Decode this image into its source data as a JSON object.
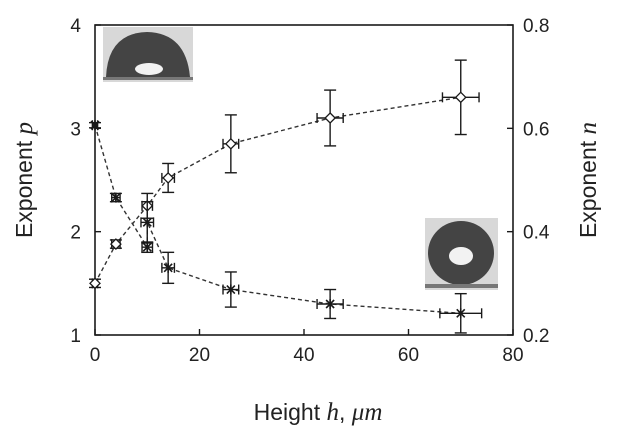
{
  "chart_data": {
    "type": "scatter",
    "xlabel": "Height",
    "xlabel_symbol": "h",
    "xlabel_unit": "μm",
    "ylabel_left": "Exponent",
    "ylabel_left_symbol": "p",
    "ylabel_right": "Exponent",
    "ylabel_right_symbol": "n",
    "xlim": [
      0,
      80
    ],
    "ylim_left": [
      1,
      4
    ],
    "ylim_right": [
      0.2,
      0.8
    ],
    "x_ticks": [
      "0",
      "20",
      "40",
      "60",
      "80"
    ],
    "y_left_ticks": [
      "1",
      "2",
      "3",
      "4"
    ],
    "y_right_ticks": [
      "0.2",
      "0.4",
      "0.6",
      "0.8"
    ],
    "grid": false,
    "series": [
      {
        "axis": "left",
        "marker": "diamond",
        "line": "dashed",
        "points": [
          {
            "x": 0,
            "y": 1.5,
            "yerr": 0.04,
            "xerr": 0.5
          },
          {
            "x": 4,
            "y": 1.88,
            "yerr": 0.04,
            "xerr": 0.8
          },
          {
            "x": 10,
            "y": 2.25,
            "yerr": 0.12,
            "xerr": 1.0
          },
          {
            "x": 14,
            "y": 2.52,
            "yerr": 0.14,
            "xerr": 1.2
          },
          {
            "x": 26,
            "y": 2.85,
            "yerr": 0.28,
            "xerr": 1.5
          },
          {
            "x": 45,
            "y": 3.1,
            "yerr": 0.27,
            "xerr": 2.5
          },
          {
            "x": 70,
            "y": 3.3,
            "yerr": 0.36,
            "xerr": 3.5
          }
        ]
      },
      {
        "axis": "right",
        "marker": "star",
        "line": "dashed",
        "points": [
          {
            "x": 0,
            "y": 0.606,
            "yerr": 0.005,
            "xerr": 0.5
          },
          {
            "x": 4,
            "y": 0.466,
            "yerr": 0.008,
            "xerr": 0.8
          },
          {
            "x": 10,
            "y": 0.37,
            "yerr": 0.01,
            "xerr": 1.0
          },
          {
            "x": 10,
            "y": 0.418,
            "yerr": 0.04,
            "xerr": 1.2
          },
          {
            "x": 14,
            "y": 0.33,
            "yerr": 0.03,
            "xerr": 1.2
          },
          {
            "x": 26,
            "y": 0.288,
            "yerr": 0.034,
            "xerr": 1.5
          },
          {
            "x": 45,
            "y": 0.26,
            "yerr": 0.028,
            "xerr": 2.5
          },
          {
            "x": 70,
            "y": 0.242,
            "yerr": 0.038,
            "xerr": 4.0
          }
        ]
      }
    ],
    "insets": [
      {
        "position": "top-left",
        "depicts": "water-droplet-contact-angle-photo"
      },
      {
        "position": "bottom-right",
        "depicts": "water-droplet-contact-angle-photo"
      }
    ]
  },
  "colors": {
    "axis": "#1a1a1a",
    "marker": "#1a1a1a",
    "line": "#333333",
    "inset_bg": "#d8d8d8",
    "drop": "#444444"
  }
}
